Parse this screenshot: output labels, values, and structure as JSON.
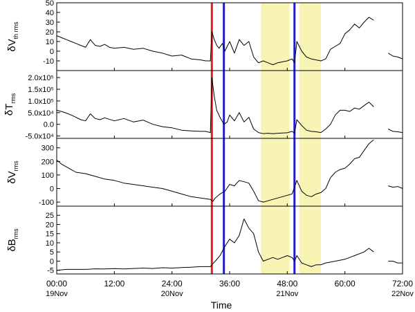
{
  "chart_data": {
    "type": "line",
    "xlabel": "Time",
    "x_ticks": [
      {
        "hour": 0,
        "time": "00:00",
        "date": "19Nov"
      },
      {
        "hour": 12,
        "time": "12:00",
        "date": ""
      },
      {
        "hour": 24,
        "time": "24:00",
        "date": "20Nov"
      },
      {
        "hour": 36,
        "time": "36:00",
        "date": ""
      },
      {
        "hour": 48,
        "time": "48:00",
        "date": "21Nov"
      },
      {
        "hour": 60,
        "time": "60:00",
        "date": ""
      },
      {
        "hour": 72,
        "time": "72:00",
        "date": "22Nov"
      }
    ],
    "xlim": [
      0,
      72
    ],
    "shaded_intervals": [
      [
        42.5,
        48.5
      ],
      [
        50.5,
        55
      ]
    ],
    "shade_color": "#f8f4b4",
    "vertical_lines": [
      {
        "x": 32.3,
        "color": "#e02020"
      },
      {
        "x": 34.8,
        "color": "#2020c8"
      },
      {
        "x": 49.5,
        "color": "#2020c8"
      }
    ],
    "panels": [
      {
        "ylabel": "δV",
        "ylabel_sub": "th rms",
        "ylim": [
          -20,
          50
        ],
        "yticks": [
          -10,
          0,
          10,
          20,
          30,
          40,
          50
        ],
        "ytick_labels": [
          "-10",
          "0",
          "10",
          "20",
          "30",
          "40",
          "50"
        ],
        "series": {
          "x": [
            0,
            1,
            2,
            3,
            4,
            5,
            6,
            7,
            8,
            9,
            10,
            11,
            12,
            14,
            16,
            18,
            20,
            22,
            24,
            26,
            28,
            30,
            31,
            32,
            32.3,
            32.8,
            33.3,
            33.8,
            34.5,
            35,
            35.5,
            36,
            37,
            38,
            39,
            40,
            41,
            42,
            43,
            44,
            45,
            46,
            47,
            48,
            49,
            49.5,
            50,
            51,
            52,
            53,
            54,
            55,
            56,
            57,
            58,
            59,
            60,
            61,
            62,
            63,
            64,
            65,
            66,
            69,
            70,
            71,
            72
          ],
          "y": [
            16,
            14,
            12,
            10,
            8,
            6,
            4,
            12,
            6,
            5,
            7,
            4,
            3,
            4,
            2,
            3,
            0,
            -2,
            -5,
            -4,
            -8,
            -9,
            -10,
            -10,
            20,
            12,
            6,
            3,
            8,
            0,
            5,
            10,
            -2,
            12,
            6,
            10,
            -6,
            -12,
            -10,
            -12,
            -14,
            -12,
            -11,
            -10,
            -8,
            -12,
            10,
            0,
            -6,
            -8,
            -9,
            -10,
            -8,
            2,
            5,
            8,
            18,
            22,
            28,
            24,
            30,
            35,
            32,
            -2,
            -5,
            -6,
            -8
          ]
        }
      },
      {
        "ylabel": "δT",
        "ylabel_sub": "rms",
        "ylim": [
          -60000,
          230000
        ],
        "yticks": [
          -50000,
          0,
          50000,
          100000,
          150000,
          200000
        ],
        "ytick_labels": [
          "-5.0x10⁴",
          "0.0",
          "5.0x10⁴",
          "1.0x10⁵",
          "1.5x10⁵",
          "2.0x10⁵"
        ],
        "series": {
          "x": [
            0,
            1,
            2,
            3,
            4,
            5,
            6,
            7,
            8,
            9,
            10,
            12,
            14,
            16,
            18,
            20,
            22,
            24,
            26,
            28,
            30,
            31,
            32,
            32.3,
            32.8,
            33.3,
            34,
            34.8,
            35.5,
            36,
            37,
            38,
            39,
            40,
            41,
            42,
            43,
            44,
            45,
            46,
            47,
            48,
            49,
            49.5,
            50,
            51,
            52,
            53,
            54,
            55,
            56,
            57,
            58,
            59,
            60,
            61,
            62,
            63,
            64,
            65,
            66,
            69,
            70,
            71,
            72
          ],
          "y": [
            60000,
            55000,
            48000,
            40000,
            30000,
            20000,
            15000,
            45000,
            25000,
            20000,
            28000,
            15000,
            25000,
            10000,
            18000,
            0,
            -10000,
            -15000,
            -25000,
            -28000,
            -30000,
            -30000,
            -35000,
            200000,
            120000,
            60000,
            30000,
            0,
            10000,
            40000,
            15000,
            50000,
            10000,
            30000,
            -20000,
            -35000,
            -40000,
            -38000,
            -40000,
            -38000,
            -37000,
            -36000,
            -30000,
            -38000,
            20000,
            -5000,
            -25000,
            -30000,
            -32000,
            -35000,
            -20000,
            0,
            40000,
            60000,
            60000,
            55000,
            70000,
            65000,
            80000,
            95000,
            75000,
            -20000,
            -30000,
            -32000,
            -35000
          ]
        }
      },
      {
        "ylabel": "δV",
        "ylabel_sub": "rms",
        "ylim": [
          -130,
          370
        ],
        "yticks": [
          -100,
          0,
          100,
          200,
          300
        ],
        "ytick_labels": [
          "-100",
          "0",
          "100",
          "200",
          "300"
        ],
        "series": {
          "x": [
            0,
            1,
            2,
            3,
            4,
            6,
            8,
            10,
            12,
            14,
            16,
            18,
            20,
            22,
            24,
            26,
            28,
            30,
            32,
            32.5,
            33,
            34,
            35,
            36,
            37,
            38,
            39,
            40,
            41,
            42,
            43,
            44,
            45,
            46,
            47,
            48,
            49,
            50,
            51,
            52,
            53,
            54,
            55,
            56,
            57,
            58,
            59,
            60,
            61,
            62,
            63,
            64,
            65,
            66,
            69,
            70,
            71,
            72
          ],
          "y": [
            210,
            180,
            160,
            140,
            120,
            110,
            90,
            70,
            60,
            40,
            30,
            20,
            10,
            0,
            -20,
            -40,
            -60,
            -70,
            -80,
            -95,
            -70,
            -40,
            -20,
            30,
            20,
            60,
            50,
            40,
            -20,
            -90,
            -100,
            -90,
            -80,
            -70,
            -60,
            -50,
            -40,
            60,
            -20,
            -50,
            -60,
            -40,
            -30,
            0,
            80,
            120,
            140,
            150,
            180,
            220,
            230,
            280,
            330,
            360,
            20,
            10,
            15,
            0
          ]
        }
      },
      {
        "ylabel": "δB",
        "ylabel_sub": "rms",
        "ylim": [
          -7,
          30
        ],
        "yticks": [
          -5,
          0,
          5,
          10,
          15,
          20,
          25
        ],
        "ytick_labels": [
          "-5",
          "0",
          "5",
          "10",
          "15",
          "20",
          "25"
        ],
        "series": {
          "x": [
            0,
            2,
            4,
            6,
            8,
            10,
            12,
            14,
            16,
            18,
            20,
            22,
            24,
            26,
            28,
            30,
            31,
            32,
            32.3,
            33,
            34,
            35,
            36,
            37,
            38,
            39,
            40,
            41,
            42,
            43,
            44,
            45,
            46,
            47,
            48,
            49,
            49.5,
            50,
            51,
            52,
            53,
            54,
            55,
            56,
            58,
            60,
            62,
            64,
            65,
            66,
            69,
            70,
            71,
            72
          ],
          "y": [
            -5,
            -4.5,
            -4.5,
            -4.5,
            -4.2,
            -4.3,
            -4.1,
            -4.3,
            -4,
            -3.8,
            -4,
            -3.6,
            -3.8,
            -3.5,
            -3.3,
            -3,
            -3,
            -3,
            -2,
            0,
            3,
            8,
            12,
            10,
            14,
            23,
            18,
            15,
            5,
            0,
            1,
            2,
            1,
            2,
            3,
            2,
            0,
            3,
            -1,
            -2,
            -3,
            -2,
            -2,
            -1,
            0,
            1,
            3,
            5,
            7,
            5,
            0,
            0,
            -1,
            -1
          ]
        }
      }
    ]
  }
}
